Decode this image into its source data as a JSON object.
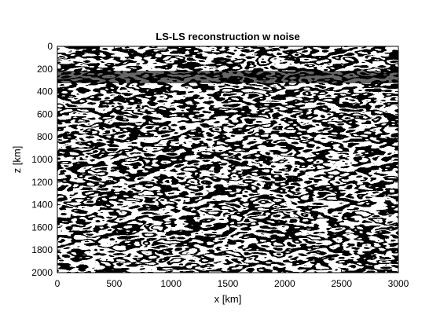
{
  "chart_data": {
    "type": "heatmap",
    "title": "LS-LS reconstruction w noise",
    "xlabel": "x [km]",
    "ylabel": "z [km]",
    "xlim": [
      0,
      3000
    ],
    "ylim": [
      0,
      2000
    ],
    "y_reversed": true,
    "x_ticks": [
      "0",
      "500",
      "1000",
      "1500",
      "2000",
      "2500",
      "3000"
    ],
    "y_ticks": [
      "0",
      "200",
      "400",
      "600",
      "800",
      "1000",
      "1200",
      "1400",
      "1600",
      "1800",
      "2000"
    ],
    "colormap": "gray",
    "grid": false,
    "legend": "none"
  }
}
